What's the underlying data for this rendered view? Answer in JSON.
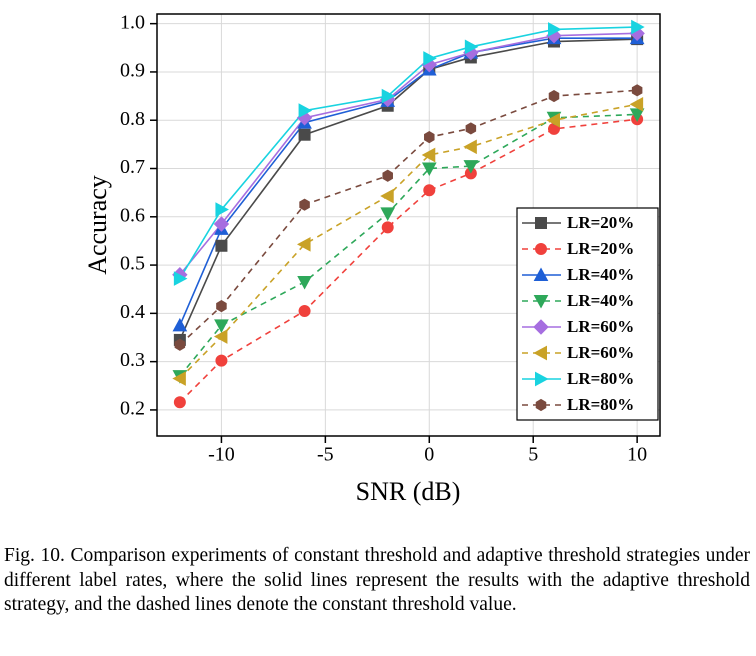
{
  "chart_data": {
    "type": "line",
    "x_label": "SNR (dB)",
    "y_label": "Accuracy",
    "x": [
      -12,
      -10,
      -6,
      -2,
      0,
      2,
      6,
      10
    ],
    "xlim": [
      -13.1,
      11.1
    ],
    "xticks": [
      -10,
      -5,
      0,
      5,
      10
    ],
    "ylim": [
      0.146,
      1.02
    ],
    "yticks": [
      0.2,
      0.3,
      0.4,
      0.5,
      0.6,
      0.7,
      0.8,
      0.9,
      {
        "value": 1,
        "label": "1.0"
      }
    ],
    "grid": true,
    "legend": "lower right",
    "series": [
      {
        "name": "LR=20%",
        "color": "#4a4a4a",
        "line_style": "solid",
        "marker": "square",
        "values": [
          0.345,
          0.54,
          0.77,
          0.83,
          0.905,
          0.93,
          0.963,
          0.968
        ]
      },
      {
        "name": "LR=20%",
        "color": "#f0413c",
        "line_style": "dashed",
        "marker": "circle",
        "values": [
          0.216,
          0.302,
          0.405,
          0.578,
          0.655,
          0.69,
          0.782,
          0.802
        ]
      },
      {
        "name": "LR=40%",
        "color": "#1f5fd6",
        "line_style": "solid",
        "marker": "triangle-up",
        "values": [
          0.375,
          0.575,
          0.795,
          0.84,
          0.905,
          0.94,
          0.97,
          0.97
        ]
      },
      {
        "name": "LR=40%",
        "color": "#2ea85a",
        "line_style": "dashed",
        "marker": "triangle-down",
        "values": [
          0.27,
          0.375,
          0.465,
          0.607,
          0.7,
          0.705,
          0.805,
          0.812
        ]
      },
      {
        "name": "LR=60%",
        "color": "#a66ee0",
        "line_style": "solid",
        "marker": "diamond",
        "values": [
          0.48,
          0.585,
          0.805,
          0.843,
          0.915,
          0.94,
          0.975,
          0.98
        ]
      },
      {
        "name": "LR=60%",
        "color": "#c9a227",
        "line_style": "dashed",
        "marker": "triangle-left",
        "values": [
          0.265,
          0.352,
          0.543,
          0.643,
          0.728,
          0.745,
          0.8,
          0.833
        ]
      },
      {
        "name": "LR=80%",
        "color": "#19d3e0",
        "line_style": "solid",
        "marker": "triangle-right",
        "values": [
          0.472,
          0.615,
          0.82,
          0.85,
          0.928,
          0.952,
          0.988,
          0.993
        ]
      },
      {
        "name": "LR=80%",
        "color": "#7a4a3e",
        "line_style": "dashed",
        "marker": "hexagon",
        "values": [
          0.335,
          0.415,
          0.625,
          0.685,
          0.765,
          0.783,
          0.85,
          0.862
        ]
      }
    ]
  },
  "caption": "Fig. 10.  Comparison experiments of constant threshold and adaptive threshold strategies under different label rates, where the solid lines represent the results with the adaptive threshold strategy, and the dashed lines denote the constant threshold value."
}
